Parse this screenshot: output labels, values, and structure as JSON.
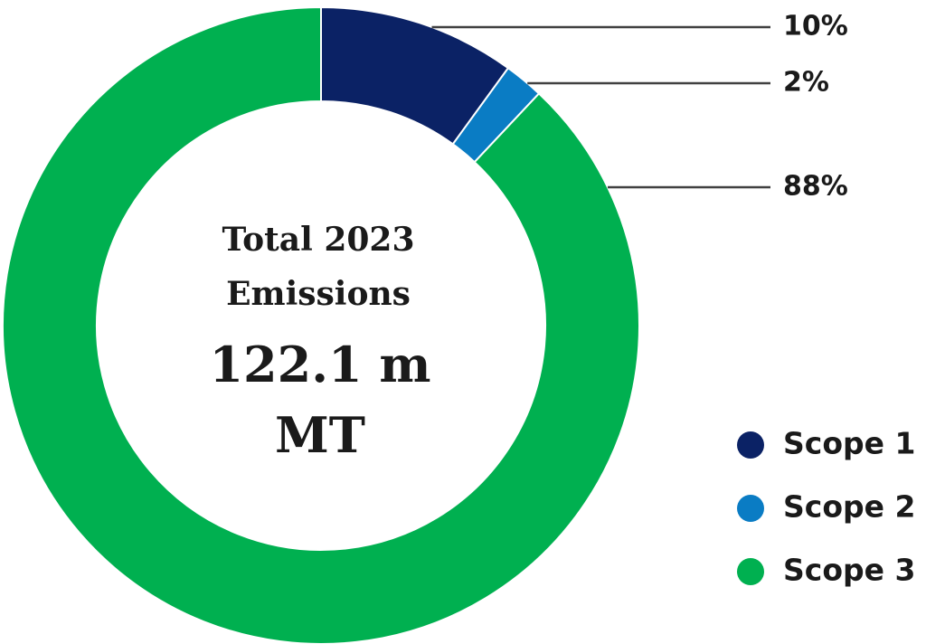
{
  "chart_data": {
    "type": "pie",
    "center_label": [
      "Total 2023",
      "Emissions"
    ],
    "center_value": [
      "122.1 m",
      "MT"
    ],
    "categories": [
      "Scope 1",
      "Scope 2",
      "Scope 3"
    ],
    "values": [
      10,
      2,
      88
    ],
    "value_labels": [
      "10%",
      "2%",
      "88%"
    ],
    "colors": [
      "#0b2265",
      "#0a7cc4",
      "#00b050"
    ],
    "donut": true
  }
}
